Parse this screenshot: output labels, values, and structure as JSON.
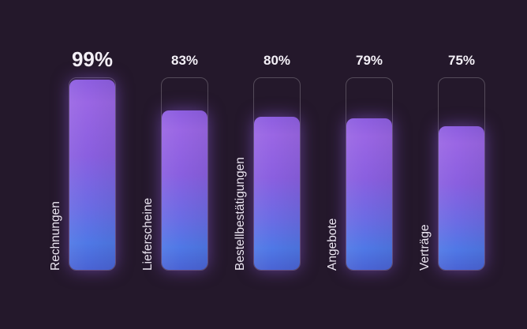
{
  "chart_data": {
    "type": "bar",
    "orientation": "vertical",
    "categories": [
      "Rechnungen",
      "Lieferscheine",
      "Bestellbestätigungen",
      "Angebote",
      "Verträge"
    ],
    "values": [
      99,
      83,
      80,
      79,
      75
    ],
    "value_labels": [
      "99%",
      "83%",
      "80%",
      "79%",
      "75%"
    ],
    "ylim": [
      0,
      100
    ],
    "title": "",
    "xlabel": "",
    "ylabel": "",
    "grid": false,
    "legend": "none",
    "category_labels_rotated": true,
    "highlighted_category": "Rechnungen",
    "colors": {
      "background": "#24182b",
      "bar_top": "#8d5ee0",
      "bar_bottom": "#4f78e6",
      "track_border": "#5a4a66",
      "text": "#f4f0f7"
    }
  }
}
